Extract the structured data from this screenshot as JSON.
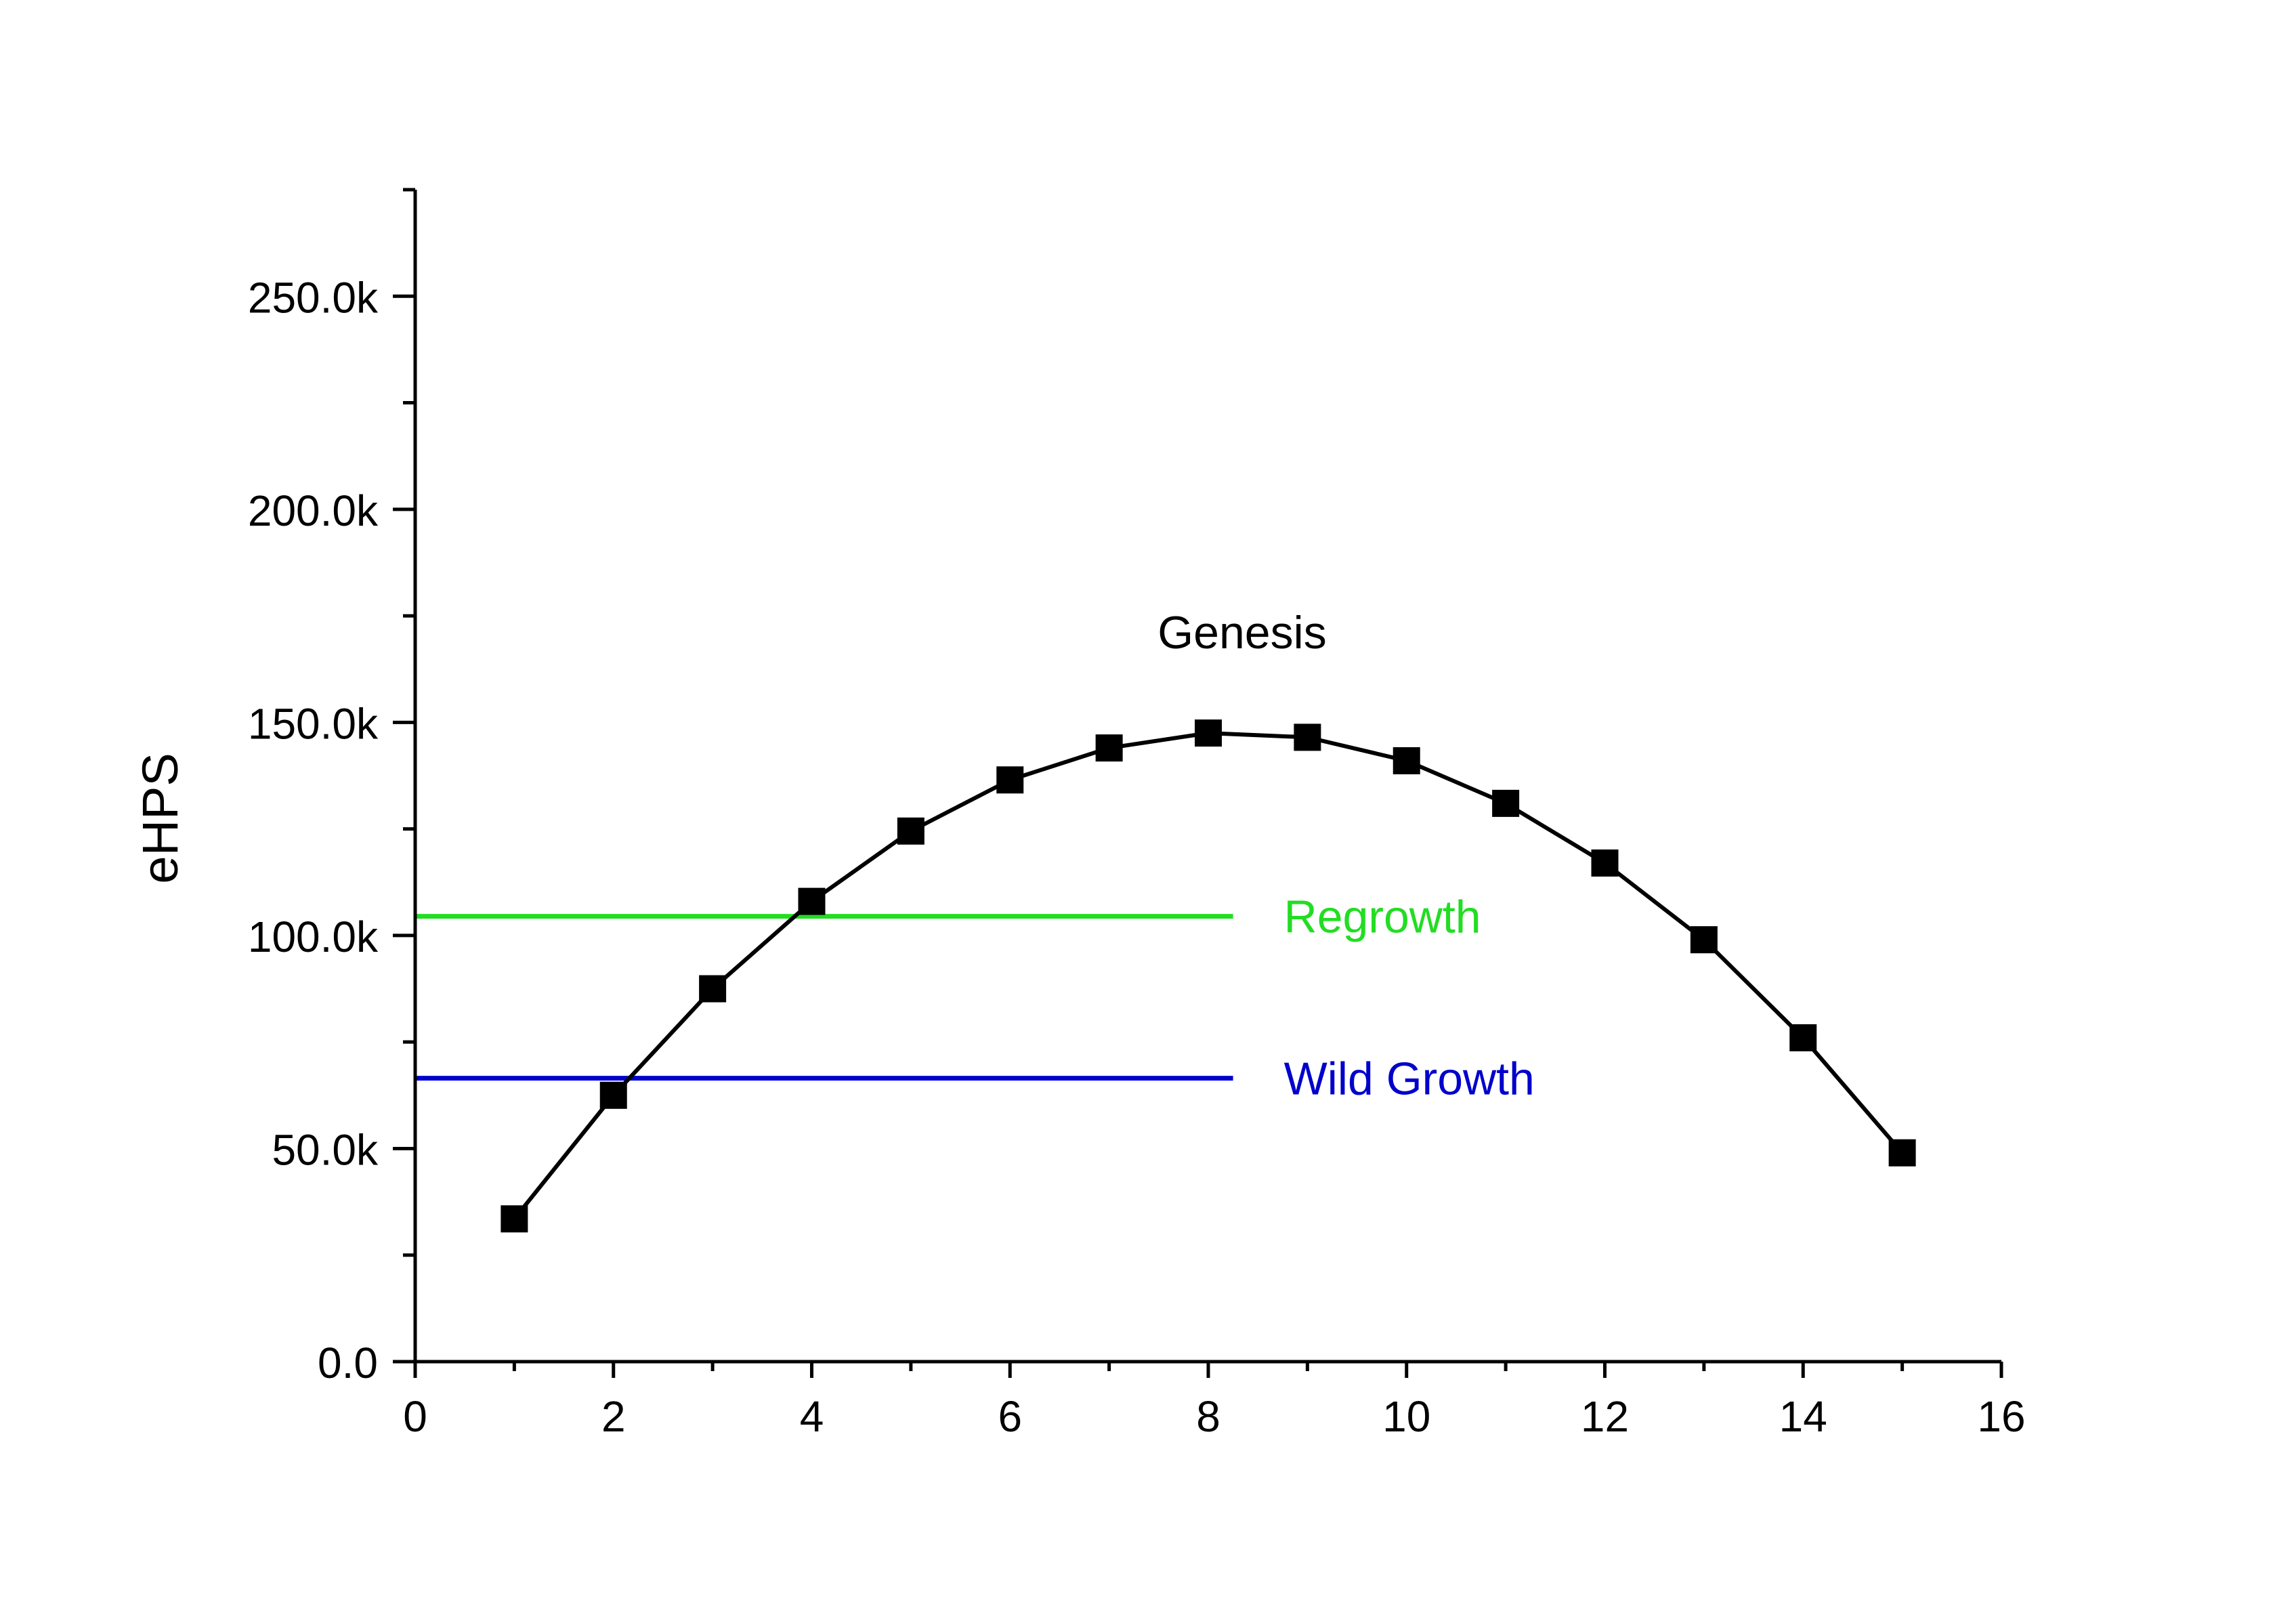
{
  "chart_data": {
    "type": "line",
    "title": "",
    "xlabel": "",
    "ylabel": "eHPS",
    "xlim": [
      0,
      16
    ],
    "ylim": [
      0,
      275000
    ],
    "x_ticks": [
      0,
      2,
      4,
      6,
      8,
      10,
      12,
      14,
      16
    ],
    "x_tick_labels": [
      "0",
      "2",
      "4",
      "6",
      "8",
      "10",
      "12",
      "14",
      "16"
    ],
    "y_ticks": [
      0,
      50000,
      100000,
      150000,
      200000,
      250000
    ],
    "y_tick_labels": [
      "0.0",
      "50.0k",
      "100.0k",
      "150.0k",
      "200.0k",
      "250.0k"
    ],
    "grid": false,
    "series": [
      {
        "name": "Genesis",
        "color": "#000000",
        "marker": "square",
        "x": [
          1,
          2,
          3,
          4,
          5,
          6,
          7,
          8,
          9,
          10,
          11,
          12,
          13,
          14,
          15
        ],
        "y": [
          33500,
          62500,
          87500,
          108000,
          124500,
          136500,
          144000,
          147500,
          146500,
          141000,
          131000,
          117000,
          99000,
          76000,
          49000
        ]
      }
    ],
    "reference_lines": [
      {
        "name": "Regrowth",
        "color": "#22dd22",
        "y": 104500,
        "x_range": [
          0,
          8.25
        ]
      },
      {
        "name": "Wild Growth",
        "color": "#0000cc",
        "y": 66500,
        "x_range": [
          0,
          8.25
        ]
      }
    ]
  }
}
